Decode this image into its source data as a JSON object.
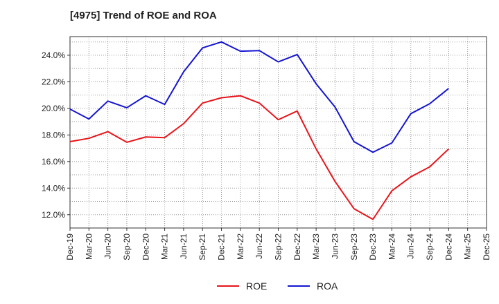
{
  "chart_data": {
    "type": "line",
    "title": "[4975]  Trend of ROE and ROA",
    "xlabel": "",
    "ylabel": "",
    "x_tick_labels": [
      "Dec-19",
      "Mar-20",
      "Jun-20",
      "Sep-20",
      "Dec-20",
      "Mar-21",
      "Jun-21",
      "Sep-21",
      "Dec-21",
      "Mar-22",
      "Jun-22",
      "Sep-22",
      "Dec-22",
      "Mar-23",
      "Jun-23",
      "Sep-23",
      "Dec-23",
      "Mar-24",
      "Jun-24",
      "Sep-24",
      "Dec-24",
      "Mar-25",
      "Dec-25"
    ],
    "y_tick_labels": [
      "12.0%",
      "14.0%",
      "16.0%",
      "18.0%",
      "20.0%",
      "22.0%",
      "24.0%"
    ],
    "y_ticks": [
      12,
      14,
      16,
      18,
      20,
      22,
      24
    ],
    "ylim": [
      11.0,
      25.4
    ],
    "grid": true,
    "legend_position": "bottom-center",
    "series": [
      {
        "name": "ROE",
        "color": "#e8141a",
        "values": [
          17.5,
          17.75,
          18.25,
          17.45,
          17.85,
          17.8,
          18.85,
          20.4,
          20.8,
          20.95,
          20.4,
          19.15,
          19.8,
          16.95,
          14.5,
          12.45,
          11.65,
          13.8,
          14.85,
          15.6,
          16.95
        ]
      },
      {
        "name": "ROA",
        "color": "#1414d2",
        "values": [
          19.95,
          19.2,
          20.55,
          20.05,
          20.95,
          20.3,
          22.75,
          24.55,
          25.0,
          24.3,
          24.35,
          23.5,
          24.05,
          21.85,
          20.1,
          17.5,
          16.7,
          17.4,
          19.6,
          20.35,
          21.5
        ]
      }
    ]
  }
}
